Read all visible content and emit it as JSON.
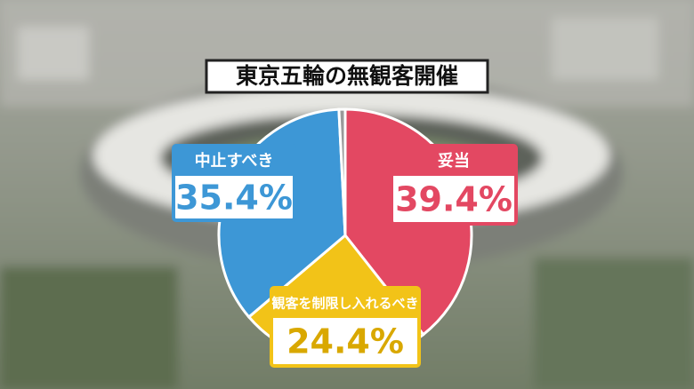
{
  "chart_data": {
    "type": "pie",
    "title": "東京五輪の無観客開催",
    "categories": [
      "妥当",
      "観客を制限し入れるべき",
      "中止すべき",
      null
    ],
    "values": [
      39.4,
      24.4,
      35.4,
      0.8
    ],
    "value_labels": [
      "39.4%",
      "24.4%",
      "35.4%",
      null
    ],
    "colors": [
      "#e34862",
      "#f2c318",
      "#3d97d6",
      "#9a9a9a"
    ]
  }
}
